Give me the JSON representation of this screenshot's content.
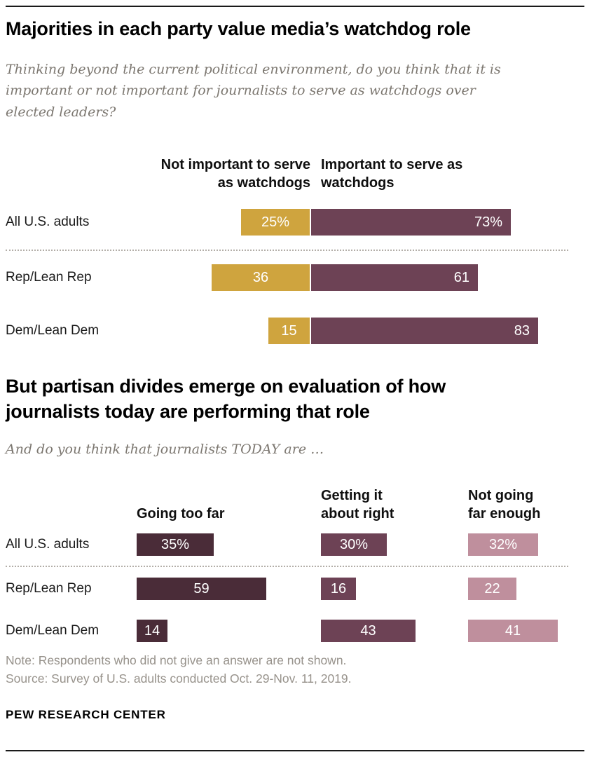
{
  "chart_data": [
    {
      "type": "bar",
      "orientation": "horizontal",
      "title": "Majorities in each party value media’s watchdog role",
      "subtitle": "Thinking beyond the current political environment, do you think that it is\nimportant or not important for journalists to serve as watchdogs over\nelected leaders?",
      "categories": [
        "All U.S. adults",
        "Rep/Lean Rep",
        "Dem/Lean Dem"
      ],
      "xlim": [
        0,
        100
      ],
      "grid": false,
      "legend_position": "top",
      "series": [
        {
          "name": "Not important to serve as watchdogs",
          "header": "Not important to serve\nas watchdogs",
          "color": "#cfa43e",
          "values": [
            25,
            36,
            15
          ],
          "labels": [
            "25%",
            "36",
            "15"
          ]
        },
        {
          "name": "Important to serve as watchdogs",
          "header": "Important to serve as\nwatchdogs",
          "color": "#6d4255",
          "values": [
            73,
            61,
            83
          ],
          "labels": [
            "73%",
            "61",
            "83"
          ]
        }
      ]
    },
    {
      "type": "bar",
      "orientation": "horizontal",
      "title": "But partisan divides emerge on evaluation of how\njournalists today are performing that role",
      "subtitle": "And do you think that journalists TODAY are …",
      "categories": [
        "All U.S. adults",
        "Rep/Lean Rep",
        "Dem/Lean Dem"
      ],
      "xlim": [
        0,
        100
      ],
      "grid": false,
      "legend_position": "top",
      "series": [
        {
          "name": "Going too far",
          "header": "Going too far",
          "color": "#4a2c38",
          "values": [
            35,
            59,
            14
          ],
          "labels": [
            "35%",
            "59",
            "14"
          ]
        },
        {
          "name": "Getting it about right",
          "header": "Getting it\nabout right",
          "color": "#6d4255",
          "values": [
            30,
            16,
            43
          ],
          "labels": [
            "30%",
            "16",
            "43"
          ]
        },
        {
          "name": "Not going far enough",
          "header": "Not going\nfar enough",
          "color": "#bf8f9d",
          "values": [
            32,
            22,
            41
          ],
          "labels": [
            "32%",
            "22",
            "41"
          ]
        }
      ]
    }
  ],
  "footer": {
    "note": "Note: Respondents who did not give an answer are not shown.",
    "source": "Source: Survey of U.S. adults conducted Oct. 29-Nov. 11, 2019.",
    "org": "PEW RESEARCH CENTER"
  }
}
